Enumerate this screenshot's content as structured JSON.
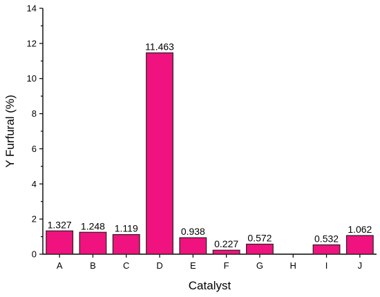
{
  "chart_data": {
    "type": "bar",
    "xlabel": "Catalyst",
    "ylabel": "Y Furfural (%)",
    "categories": [
      "A",
      "B",
      "C",
      "D",
      "E",
      "F",
      "G",
      "H",
      "I",
      "J"
    ],
    "values": [
      1.327,
      1.248,
      1.119,
      11.463,
      0.938,
      0.227,
      0.572,
      0,
      0.532,
      1.062
    ],
    "data_labels": [
      "1.327",
      "1.248",
      "1.119",
      "11.463",
      "0.938",
      "0.227",
      "0.572",
      "",
      "0.532",
      "1.062"
    ],
    "ylim": [
      0,
      14
    ],
    "yticks": [
      "0",
      "2",
      "4",
      "6",
      "8",
      "10",
      "12",
      "14"
    ],
    "grid": false,
    "legend": "none",
    "bar_color": "#f0127e"
  }
}
